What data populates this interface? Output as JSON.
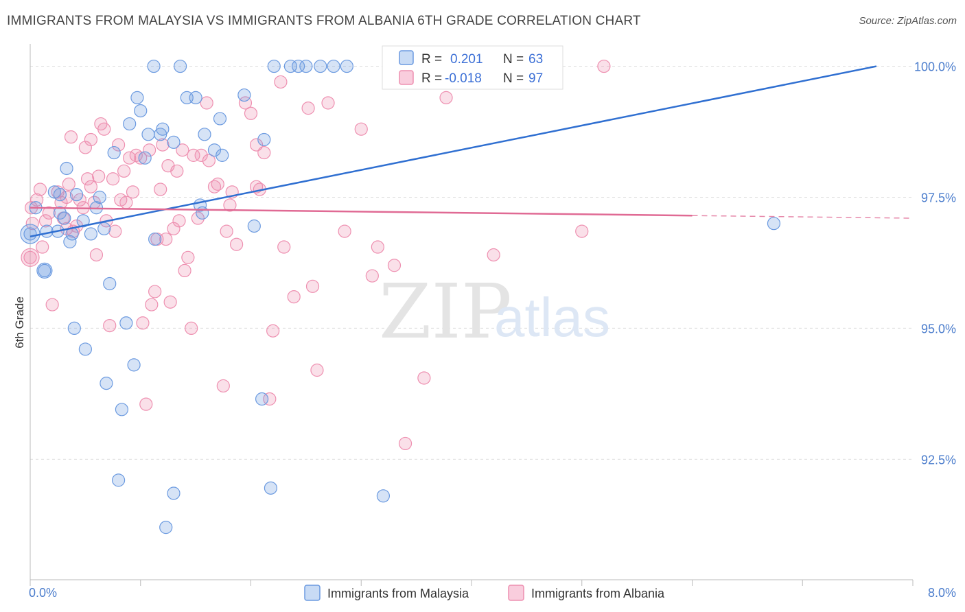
{
  "title": "IMMIGRANTS FROM MALAYSIA VS IMMIGRANTS FROM ALBANIA 6TH GRADE CORRELATION CHART",
  "source": "Source: ZipAtlas.com",
  "watermark": {
    "zip": "ZIP",
    "atlas": "atlas"
  },
  "legend_stats": {
    "r_label": "R =",
    "n_label": "N =",
    "rows": [
      {
        "r": "0.201",
        "n": "63"
      },
      {
        "r": "-0.018",
        "n": "97"
      }
    ]
  },
  "chart_data": {
    "type": "scatter",
    "xlabel": "",
    "ylabel": "6th Grade",
    "xlim": [
      0.0,
      8.0
    ],
    "ylim": [
      90.2,
      100.4
    ],
    "x_tick_labels": [
      "0.0%",
      "8.0%"
    ],
    "y_ticks": [
      100.0,
      97.5,
      95.0,
      92.5
    ],
    "y_tick_labels": [
      "100.0%",
      "97.5%",
      "95.0%",
      "92.5%"
    ],
    "grid": true,
    "legend_position": "bottom-center",
    "colors": {
      "malaysia": "#6b9ae0",
      "albania": "#ee8fb0",
      "malaysia_line": "#2f6fd1",
      "albania_line": "#e06a94"
    },
    "series": [
      {
        "name": "Immigrants from Malaysia",
        "trend": {
          "x0": 0.0,
          "y0": 96.75,
          "x1": 7.67,
          "y1": 100.0
        },
        "points": [
          [
            0.0,
            96.8
          ],
          [
            0.05,
            97.3
          ],
          [
            0.13,
            96.1
          ],
          [
            0.15,
            96.85
          ],
          [
            0.22,
            97.6
          ],
          [
            0.25,
            96.85
          ],
          [
            0.27,
            97.55
          ],
          [
            0.27,
            97.2
          ],
          [
            0.31,
            97.1
          ],
          [
            0.33,
            98.05
          ],
          [
            0.36,
            96.65
          ],
          [
            0.38,
            96.8
          ],
          [
            0.4,
            95.0
          ],
          [
            0.42,
            97.55
          ],
          [
            0.48,
            97.05
          ],
          [
            0.5,
            94.6
          ],
          [
            0.55,
            96.8
          ],
          [
            0.6,
            97.3
          ],
          [
            0.63,
            97.5
          ],
          [
            0.67,
            96.9
          ],
          [
            0.69,
            93.95
          ],
          [
            0.72,
            95.85
          ],
          [
            0.76,
            98.35
          ],
          [
            0.8,
            92.1
          ],
          [
            0.83,
            93.45
          ],
          [
            0.87,
            95.1
          ],
          [
            0.9,
            98.9
          ],
          [
            0.94,
            94.3
          ],
          [
            0.97,
            99.4
          ],
          [
            1.0,
            99.15
          ],
          [
            1.04,
            98.25
          ],
          [
            1.07,
            98.7
          ],
          [
            1.12,
            100.0
          ],
          [
            1.13,
            96.7
          ],
          [
            1.18,
            98.7
          ],
          [
            1.2,
            98.8
          ],
          [
            1.23,
            91.2
          ],
          [
            1.3,
            91.85
          ],
          [
            1.3,
            98.55
          ],
          [
            1.36,
            100.0
          ],
          [
            1.42,
            99.4
          ],
          [
            1.5,
            99.4
          ],
          [
            1.54,
            97.35
          ],
          [
            1.56,
            97.2
          ],
          [
            1.58,
            98.7
          ],
          [
            1.67,
            98.4
          ],
          [
            1.72,
            99.0
          ],
          [
            1.74,
            98.3
          ],
          [
            1.94,
            99.45
          ],
          [
            2.03,
            96.95
          ],
          [
            2.1,
            93.65
          ],
          [
            2.12,
            98.6
          ],
          [
            2.18,
            91.95
          ],
          [
            2.21,
            100.0
          ],
          [
            2.36,
            100.0
          ],
          [
            2.43,
            100.0
          ],
          [
            2.5,
            100.0
          ],
          [
            2.63,
            100.0
          ],
          [
            2.75,
            100.0
          ],
          [
            2.87,
            100.0
          ],
          [
            3.2,
            91.8
          ],
          [
            3.41,
            100.0
          ],
          [
            6.74,
            97.0
          ]
        ]
      },
      {
        "name": "Immigrants from Albania",
        "trend": {
          "x0": 0.0,
          "y0": 97.3,
          "x1": 6.0,
          "y1": 97.15
        },
        "points": [
          [
            0.0,
            96.35
          ],
          [
            0.01,
            97.3
          ],
          [
            0.06,
            97.45
          ],
          [
            0.09,
            97.65
          ],
          [
            0.11,
            96.55
          ],
          [
            0.14,
            97.05
          ],
          [
            0.17,
            97.2
          ],
          [
            0.2,
            95.45
          ],
          [
            0.25,
            97.6
          ],
          [
            0.28,
            97.4
          ],
          [
            0.33,
            97.5
          ],
          [
            0.33,
            96.9
          ],
          [
            0.35,
            97.75
          ],
          [
            0.37,
            98.65
          ],
          [
            0.39,
            96.85
          ],
          [
            0.42,
            96.95
          ],
          [
            0.45,
            97.45
          ],
          [
            0.48,
            97.3
          ],
          [
            0.5,
            98.45
          ],
          [
            0.52,
            97.85
          ],
          [
            0.55,
            98.6
          ],
          [
            0.55,
            97.7
          ],
          [
            0.58,
            97.4
          ],
          [
            0.6,
            96.4
          ],
          [
            0.62,
            97.9
          ],
          [
            0.64,
            98.9
          ],
          [
            0.67,
            98.8
          ],
          [
            0.69,
            97.05
          ],
          [
            0.72,
            95.05
          ],
          [
            0.75,
            97.85
          ],
          [
            0.77,
            96.85
          ],
          [
            0.8,
            98.5
          ],
          [
            0.82,
            97.45
          ],
          [
            0.85,
            98.0
          ],
          [
            0.87,
            97.4
          ],
          [
            0.9,
            98.25
          ],
          [
            0.93,
            97.6
          ],
          [
            0.96,
            98.3
          ],
          [
            1.0,
            98.25
          ],
          [
            1.02,
            95.1
          ],
          [
            1.05,
            93.55
          ],
          [
            1.08,
            98.4
          ],
          [
            1.1,
            95.45
          ],
          [
            1.13,
            95.7
          ],
          [
            1.15,
            96.7
          ],
          [
            1.18,
            97.65
          ],
          [
            1.2,
            98.5
          ],
          [
            1.23,
            96.7
          ],
          [
            1.27,
            95.5
          ],
          [
            1.3,
            96.9
          ],
          [
            1.33,
            98.0
          ],
          [
            1.35,
            97.05
          ],
          [
            1.38,
            98.4
          ],
          [
            1.4,
            96.1
          ],
          [
            1.43,
            96.35
          ],
          [
            1.46,
            95.0
          ],
          [
            1.48,
            98.3
          ],
          [
            1.52,
            97.1
          ],
          [
            1.55,
            98.3
          ],
          [
            1.6,
            99.3
          ],
          [
            1.62,
            98.2
          ],
          [
            1.67,
            97.7
          ],
          [
            1.7,
            97.75
          ],
          [
            1.75,
            93.9
          ],
          [
            1.78,
            96.85
          ],
          [
            1.83,
            97.6
          ],
          [
            1.87,
            96.6
          ],
          [
            1.95,
            99.3
          ],
          [
            2.0,
            99.1
          ],
          [
            2.05,
            98.5
          ],
          [
            2.12,
            98.35
          ],
          [
            2.17,
            93.65
          ],
          [
            2.2,
            94.95
          ],
          [
            2.27,
            99.7
          ],
          [
            2.3,
            96.55
          ],
          [
            2.39,
            95.6
          ],
          [
            2.52,
            99.2
          ],
          [
            2.56,
            95.8
          ],
          [
            2.6,
            94.2
          ],
          [
            2.7,
            99.3
          ],
          [
            2.85,
            96.85
          ],
          [
            3.0,
            98.8
          ],
          [
            3.1,
            96.0
          ],
          [
            3.15,
            96.55
          ],
          [
            3.3,
            96.2
          ],
          [
            3.4,
            92.8
          ],
          [
            3.57,
            94.05
          ],
          [
            3.77,
            99.4
          ],
          [
            4.2,
            96.4
          ],
          [
            5.0,
            96.85
          ],
          [
            5.2,
            100.0
          ],
          [
            0.02,
            97.0
          ],
          [
            0.3,
            97.1
          ],
          [
            1.25,
            98.1
          ],
          [
            2.08,
            97.65
          ],
          [
            1.81,
            97.35
          ],
          [
            2.05,
            97.7
          ]
        ]
      }
    ]
  }
}
